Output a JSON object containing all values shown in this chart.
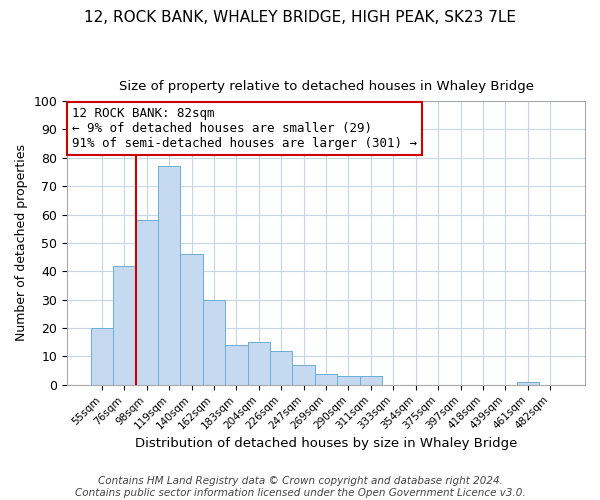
{
  "title": "12, ROCK BANK, WHALEY BRIDGE, HIGH PEAK, SK23 7LE",
  "subtitle": "Size of property relative to detached houses in Whaley Bridge",
  "xlabel": "Distribution of detached houses by size in Whaley Bridge",
  "ylabel": "Number of detached properties",
  "bar_labels": [
    "55sqm",
    "76sqm",
    "98sqm",
    "119sqm",
    "140sqm",
    "162sqm",
    "183sqm",
    "204sqm",
    "226sqm",
    "247sqm",
    "269sqm",
    "290sqm",
    "311sqm",
    "333sqm",
    "354sqm",
    "375sqm",
    "397sqm",
    "418sqm",
    "439sqm",
    "461sqm",
    "482sqm"
  ],
  "bar_heights": [
    20,
    42,
    58,
    77,
    46,
    30,
    14,
    15,
    12,
    7,
    4,
    3,
    3,
    0,
    0,
    0,
    0,
    0,
    0,
    1,
    0
  ],
  "bar_color": "#c5daf0",
  "bar_edge_color": "#6baed6",
  "vline_x_index": 2,
  "vline_color": "#cc0000",
  "annotation_title": "12 ROCK BANK: 82sqm",
  "annotation_line1": "← 9% of detached houses are smaller (29)",
  "annotation_line2": "91% of semi-detached houses are larger (301) →",
  "annotation_box_color": "#ffffff",
  "annotation_box_edge": "#cc0000",
  "ylim": [
    0,
    100
  ],
  "footer1": "Contains HM Land Registry data © Crown copyright and database right 2024.",
  "footer2": "Contains public sector information licensed under the Open Government Licence v3.0.",
  "title_fontsize": 11,
  "subtitle_fontsize": 9.5,
  "xlabel_fontsize": 9.5,
  "ylabel_fontsize": 9,
  "footer_fontsize": 7.5,
  "annotation_fontsize": 9,
  "grid_color": "#c8d4e8",
  "background_color": "#ffffff",
  "fig_background_color": "#ffffff"
}
